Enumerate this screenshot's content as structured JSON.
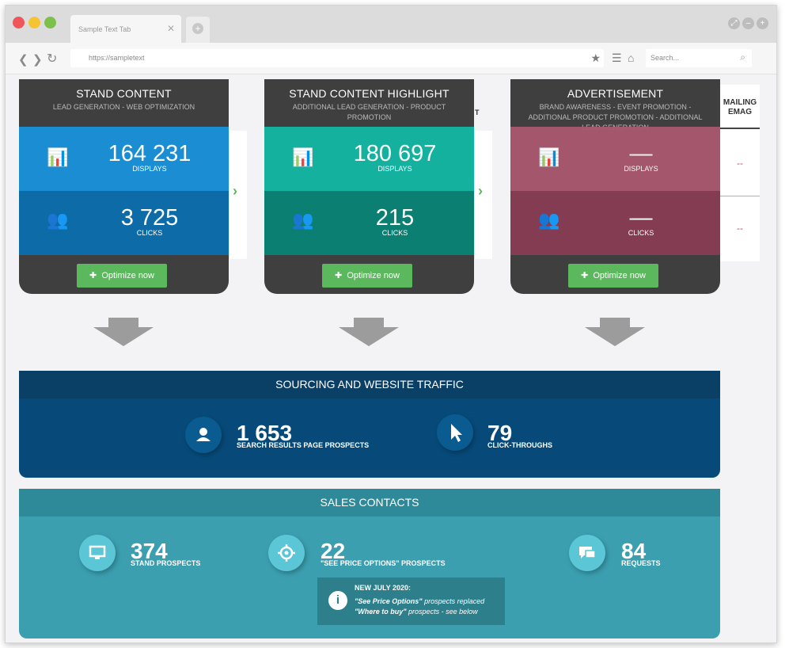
{
  "browser": {
    "tab_title": "Sample Text Tab",
    "url": "https://sampletext",
    "search_placeholder": "Search..."
  },
  "cards": [
    {
      "title": "STAND CONTENT",
      "subtitle": "LEAD GENERATION - WEB OPTIMIZATION",
      "displays_value": "164 231",
      "displays_label": "DISPLAYS",
      "clicks_value": "3 725",
      "clicks_label": "CLICKS",
      "button_label": "Optimize now",
      "colors": {
        "top": "#1b8ed3",
        "bottom": "#0d6ba7"
      }
    },
    {
      "title": "STAND CONTENT HIGHLIGHT",
      "subtitle": "ADDITIONAL LEAD GENERATION - PRODUCT PROMOTION",
      "displays_value": "180 697",
      "displays_label": "DISPLAYS",
      "clicks_value": "215",
      "clicks_label": "CLICKS",
      "button_label": "Optimize now",
      "colors": {
        "top": "#14b19e",
        "bottom": "#0b7f71"
      }
    },
    {
      "title": "ADVERTISEMENT",
      "subtitle": "BRAND AWARENESS - EVENT PROMOTION - ADDITIONAL PRODUCT PROMOTION - ADDITIONAL LEAD GENERATION",
      "displays_value": "—",
      "displays_label": "DISPLAYS",
      "clicks_value": "—",
      "clicks_label": "CLICKS",
      "button_label": "Optimize now",
      "colors": {
        "top": "#a9586e",
        "bottom": "#843c53"
      }
    }
  ],
  "side_panels": {
    "p1_head": "T",
    "peek_head_line1": "MAILING",
    "peek_head_line2": "EMAG",
    "peek_value_1": "--",
    "peek_value_2": "--"
  },
  "traffic": {
    "title": "SOURCING AND WEBSITE TRAFFIC",
    "metrics": [
      {
        "value": "1 653",
        "label": "SEARCH RESULTS PAGE PROSPECTS",
        "icon": "user-icon"
      },
      {
        "value": "79",
        "label": "CLICK-THROUGHS",
        "icon": "cursor-icon"
      }
    ]
  },
  "sales": {
    "title": "SALES CONTACTS",
    "metrics": [
      {
        "value": "374",
        "label": "STAND PROSPECTS",
        "icon": "monitor-icon"
      },
      {
        "value": "22",
        "label": "\"SEE PRICE OPTIONS\" PROSPECTS",
        "icon": "target-icon"
      },
      {
        "value": "84",
        "label": "REQUESTS",
        "icon": "chat-icon"
      }
    ],
    "notice": {
      "title": "NEW JULY 2020:",
      "line1_em": "\"See Price Options\"",
      "line1_rest": " prospects replaced",
      "line2_em": "\"Where to buy\"",
      "line2_rest": " prospects - see below"
    }
  },
  "theme": {
    "card_dark": "#403f40",
    "button_green": "#5bb85d",
    "traffic_blue": "#074a79",
    "sales_teal": "#3b9fb0"
  }
}
